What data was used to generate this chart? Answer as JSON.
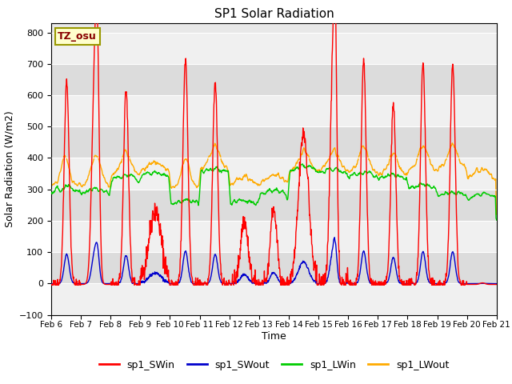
{
  "title": "SP1 Solar Radiation",
  "xlabel": "Time",
  "ylabel": "Solar Radiation (W/m2)",
  "ylim": [
    -100,
    830
  ],
  "yticks": [
    -100,
    0,
    100,
    200,
    300,
    400,
    500,
    600,
    700,
    800
  ],
  "xlim": [
    0,
    360
  ],
  "xtick_positions": [
    0,
    24,
    48,
    72,
    96,
    120,
    144,
    168,
    192,
    216,
    240,
    264,
    288,
    312,
    336,
    360
  ],
  "xtick_labels": [
    "Feb 6",
    "Feb 7",
    "Feb 8",
    "Feb 9",
    "Feb 10",
    "Feb 11",
    "Feb 12",
    "Feb 13",
    "Feb 14",
    "Feb 15",
    "Feb 16",
    "Feb 17",
    "Feb 18",
    "Feb 19",
    "Feb 20",
    "Feb 21"
  ],
  "series_colors": {
    "sp1_SWin": "#ff0000",
    "sp1_SWout": "#0000cc",
    "sp1_LWin": "#00cc00",
    "sp1_LWout": "#ffaa00"
  },
  "background_color": "#e8e8e8",
  "band_color_light": "#f0f0f0",
  "band_color_dark": "#dcdcdc",
  "annotation_text": "TZ_osu",
  "annotation_color": "#880000",
  "annotation_bg": "#ffffcc",
  "annotation_border": "#999900"
}
